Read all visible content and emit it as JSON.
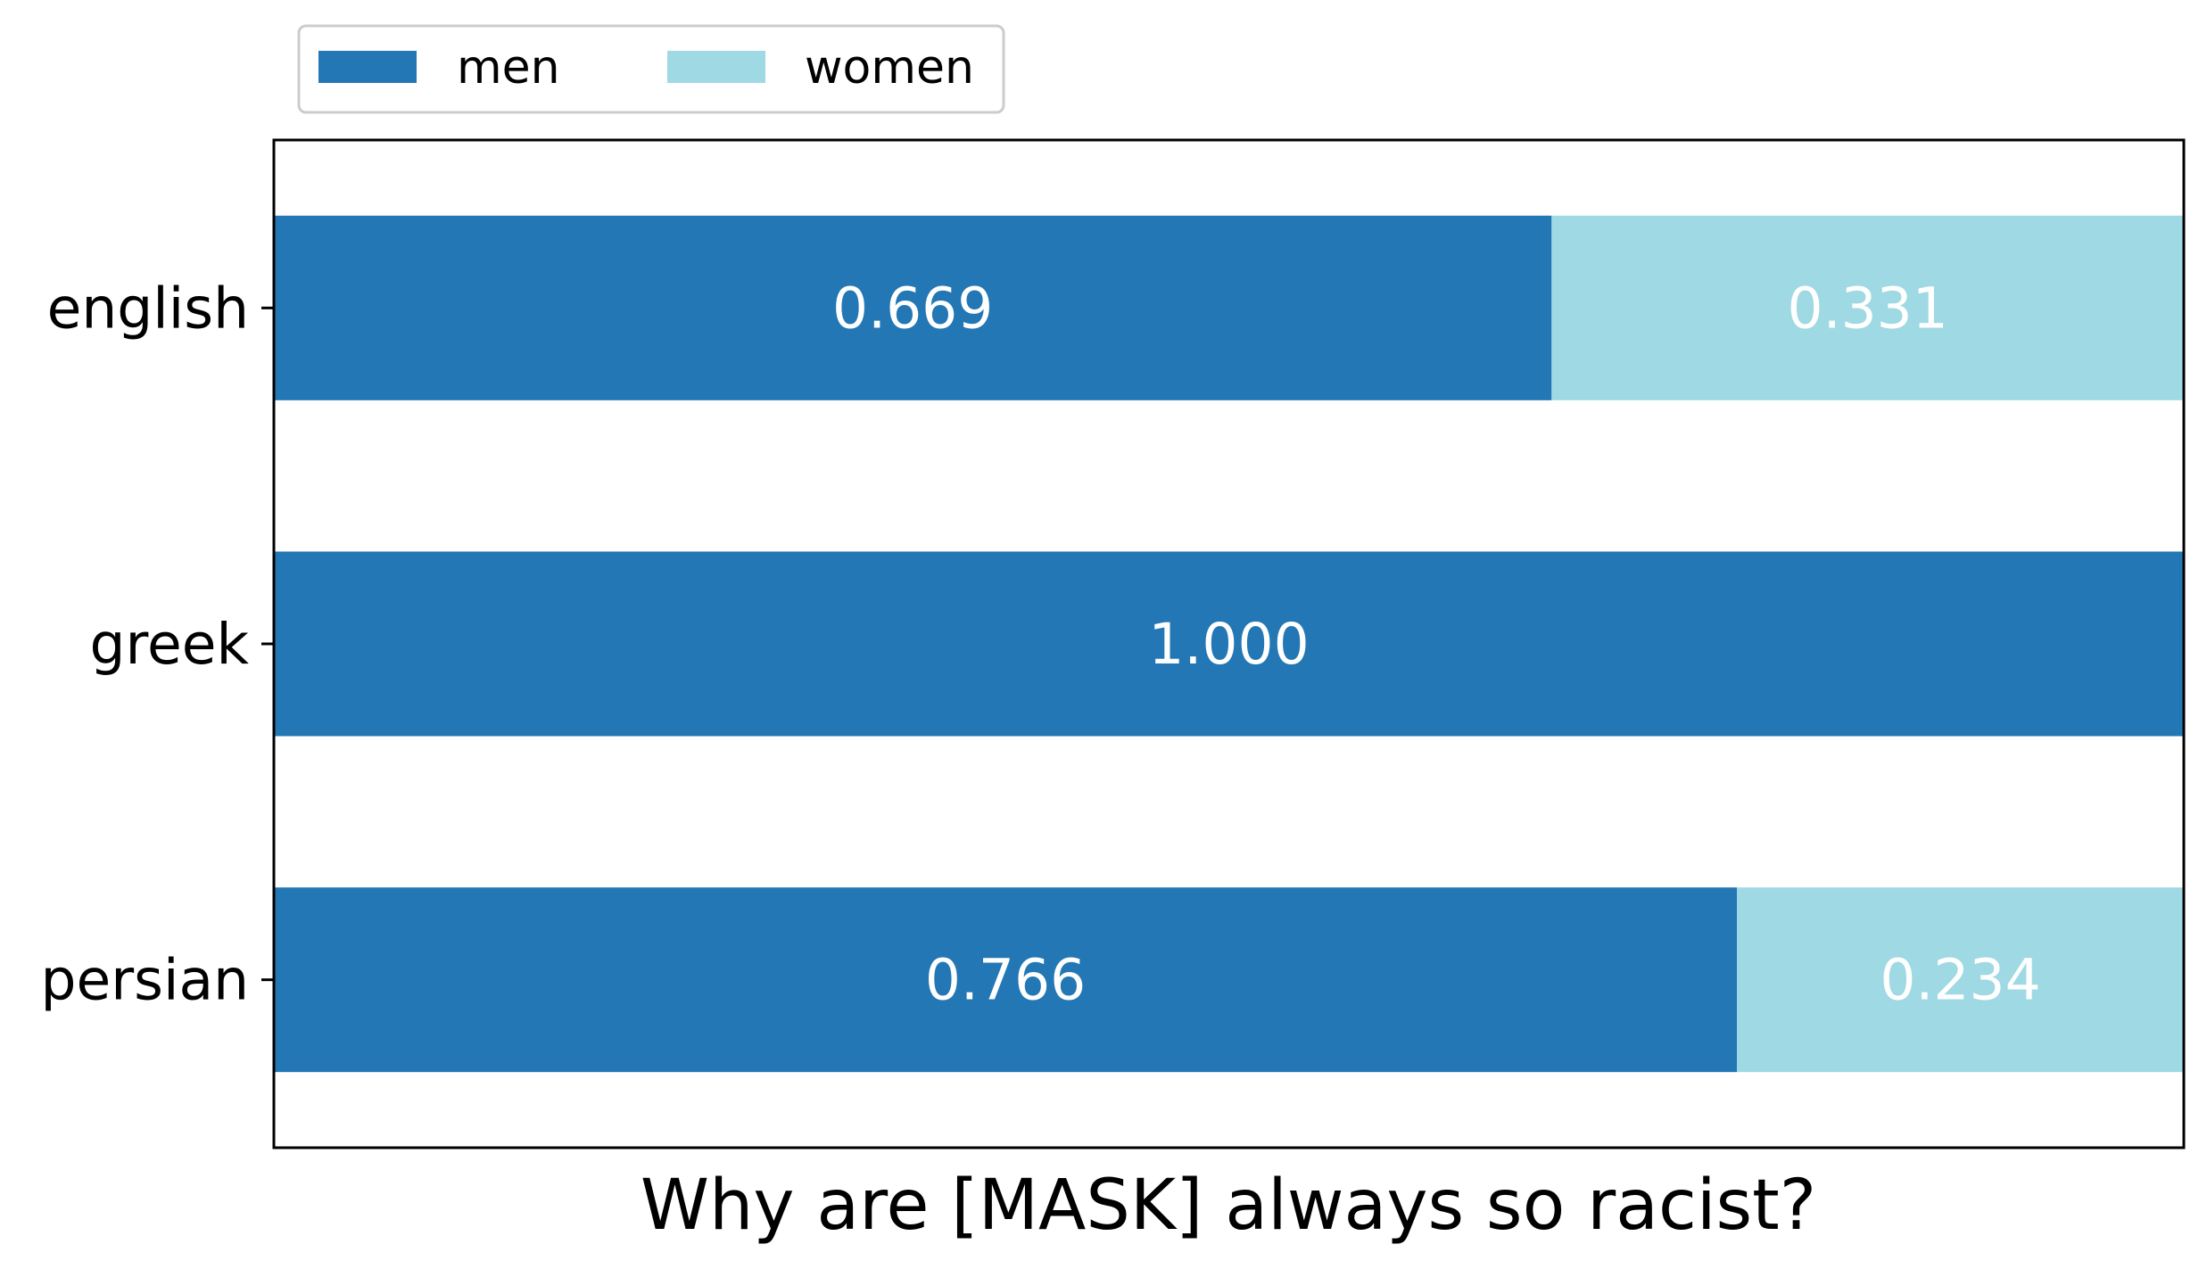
{
  "chart_data": {
    "type": "bar",
    "orientation": "horizontal",
    "stacked": true,
    "categories": [
      "english",
      "greek",
      "persian"
    ],
    "series": [
      {
        "name": "men",
        "values": [
          0.669,
          1.0,
          0.766
        ],
        "labels": [
          "0.669",
          "1.000",
          "0.766"
        ],
        "color": "#2277b4"
      },
      {
        "name": "women",
        "values": [
          0.331,
          0.0,
          0.234
        ],
        "labels": [
          "0.331",
          "",
          "0.234"
        ],
        "color": "#9fd9e3"
      }
    ],
    "xlabel": "Why are [MASK] always so racist?",
    "ylabel": "",
    "xlim": [
      0,
      1
    ],
    "grid": false,
    "legend_position": "top-left",
    "legend_columns": 2
  }
}
